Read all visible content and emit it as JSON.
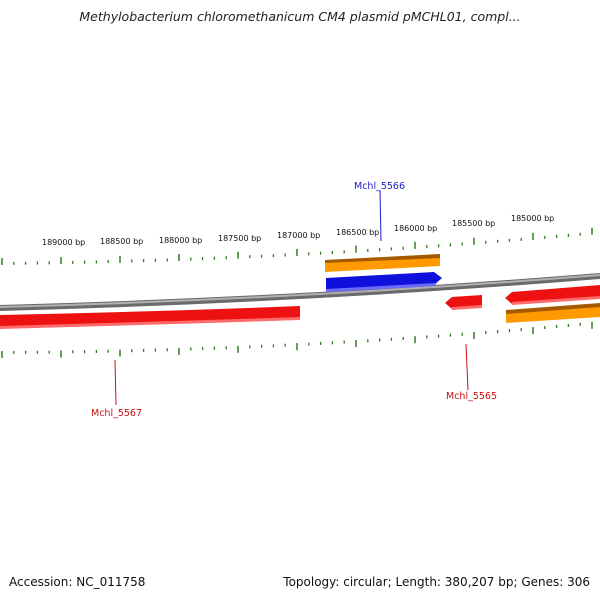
{
  "title": "Methylobacterium chloromethanicum CM4 plasmid pMCHL01, compl...",
  "footer": {
    "accession": "Accession: NC_011758",
    "summary": "Topology: circular; Length: 380,207 bp; Genes: 306"
  },
  "ruler": {
    "labels": [
      "189000 bp",
      "188500 bp",
      "188000 bp",
      "187500 bp",
      "187000 bp",
      "186500 bp",
      "186000 bp",
      "185500 bp",
      "185000 bp"
    ]
  },
  "gene_labels": [
    {
      "text": "Mchl_5566",
      "color": "#1a1acc"
    },
    {
      "text": "Mchl_5567",
      "color": "#cc1111"
    },
    {
      "text": "Mchl_5565",
      "color": "#cc1111"
    }
  ],
  "colors": {
    "backbone": "#8a8a8a",
    "tick": "#2e7d1e",
    "red_feature": "#ee1111",
    "blue_feature": "#1010dd",
    "orange_feature": "#ff9900"
  }
}
